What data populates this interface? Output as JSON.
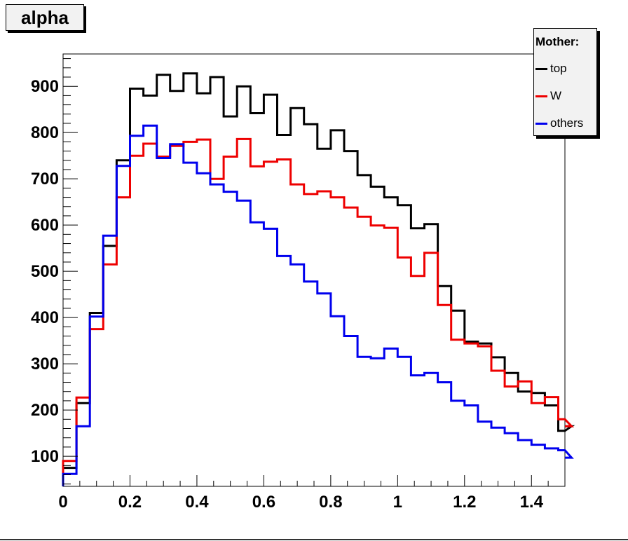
{
  "chart_data": {
    "type": "step-histogram",
    "title": "alpha",
    "xlabel": "",
    "ylabel": "",
    "xlim": [
      0,
      1.5
    ],
    "ylim": [
      35,
      970
    ],
    "bin_width": 0.04,
    "x_ticks": [
      "0",
      "0.2",
      "0.4",
      "0.6",
      "0.8",
      "1",
      "1.2",
      "1.4"
    ],
    "x_tick_values": [
      0,
      0.2,
      0.4,
      0.6,
      0.8,
      1.0,
      1.2,
      1.4
    ],
    "y_ticks": [
      "100",
      "200",
      "300",
      "400",
      "500",
      "600",
      "700",
      "800",
      "900"
    ],
    "y_tick_values": [
      100,
      200,
      300,
      400,
      500,
      600,
      700,
      800,
      900
    ],
    "legend": {
      "header": "Mother:",
      "position": "top-right"
    },
    "series": [
      {
        "name": "top",
        "color": "#000000",
        "values": [
          75,
          215,
          410,
          555,
          740,
          895,
          880,
          925,
          890,
          928,
          885,
          920,
          835,
          900,
          842,
          882,
          795,
          853,
          818,
          765,
          805,
          760,
          708,
          683,
          660,
          643,
          593,
          602,
          468,
          415,
          348,
          344,
          314,
          280,
          240,
          237,
          210,
          155,
          165
        ]
      },
      {
        "name": "W",
        "color": "#ee0000",
        "values": [
          90,
          227,
          375,
          515,
          660,
          750,
          776,
          748,
          771,
          780,
          785,
          700,
          748,
          786,
          727,
          737,
          742,
          688,
          667,
          673,
          660,
          638,
          618,
          599,
          594,
          530,
          490,
          540,
          427,
          352,
          344,
          338,
          285,
          251,
          262,
          215,
          228,
          180,
          165
        ]
      },
      {
        "name": "others",
        "color": "#0000ee",
        "values": [
          62,
          165,
          402,
          577,
          728,
          793,
          815,
          745,
          775,
          735,
          712,
          688,
          672,
          653,
          606,
          592,
          533,
          515,
          478,
          452,
          403,
          360,
          315,
          312,
          333,
          315,
          275,
          280,
          260,
          220,
          210,
          175,
          162,
          150,
          135,
          125,
          117,
          113,
          97
        ]
      }
    ]
  }
}
